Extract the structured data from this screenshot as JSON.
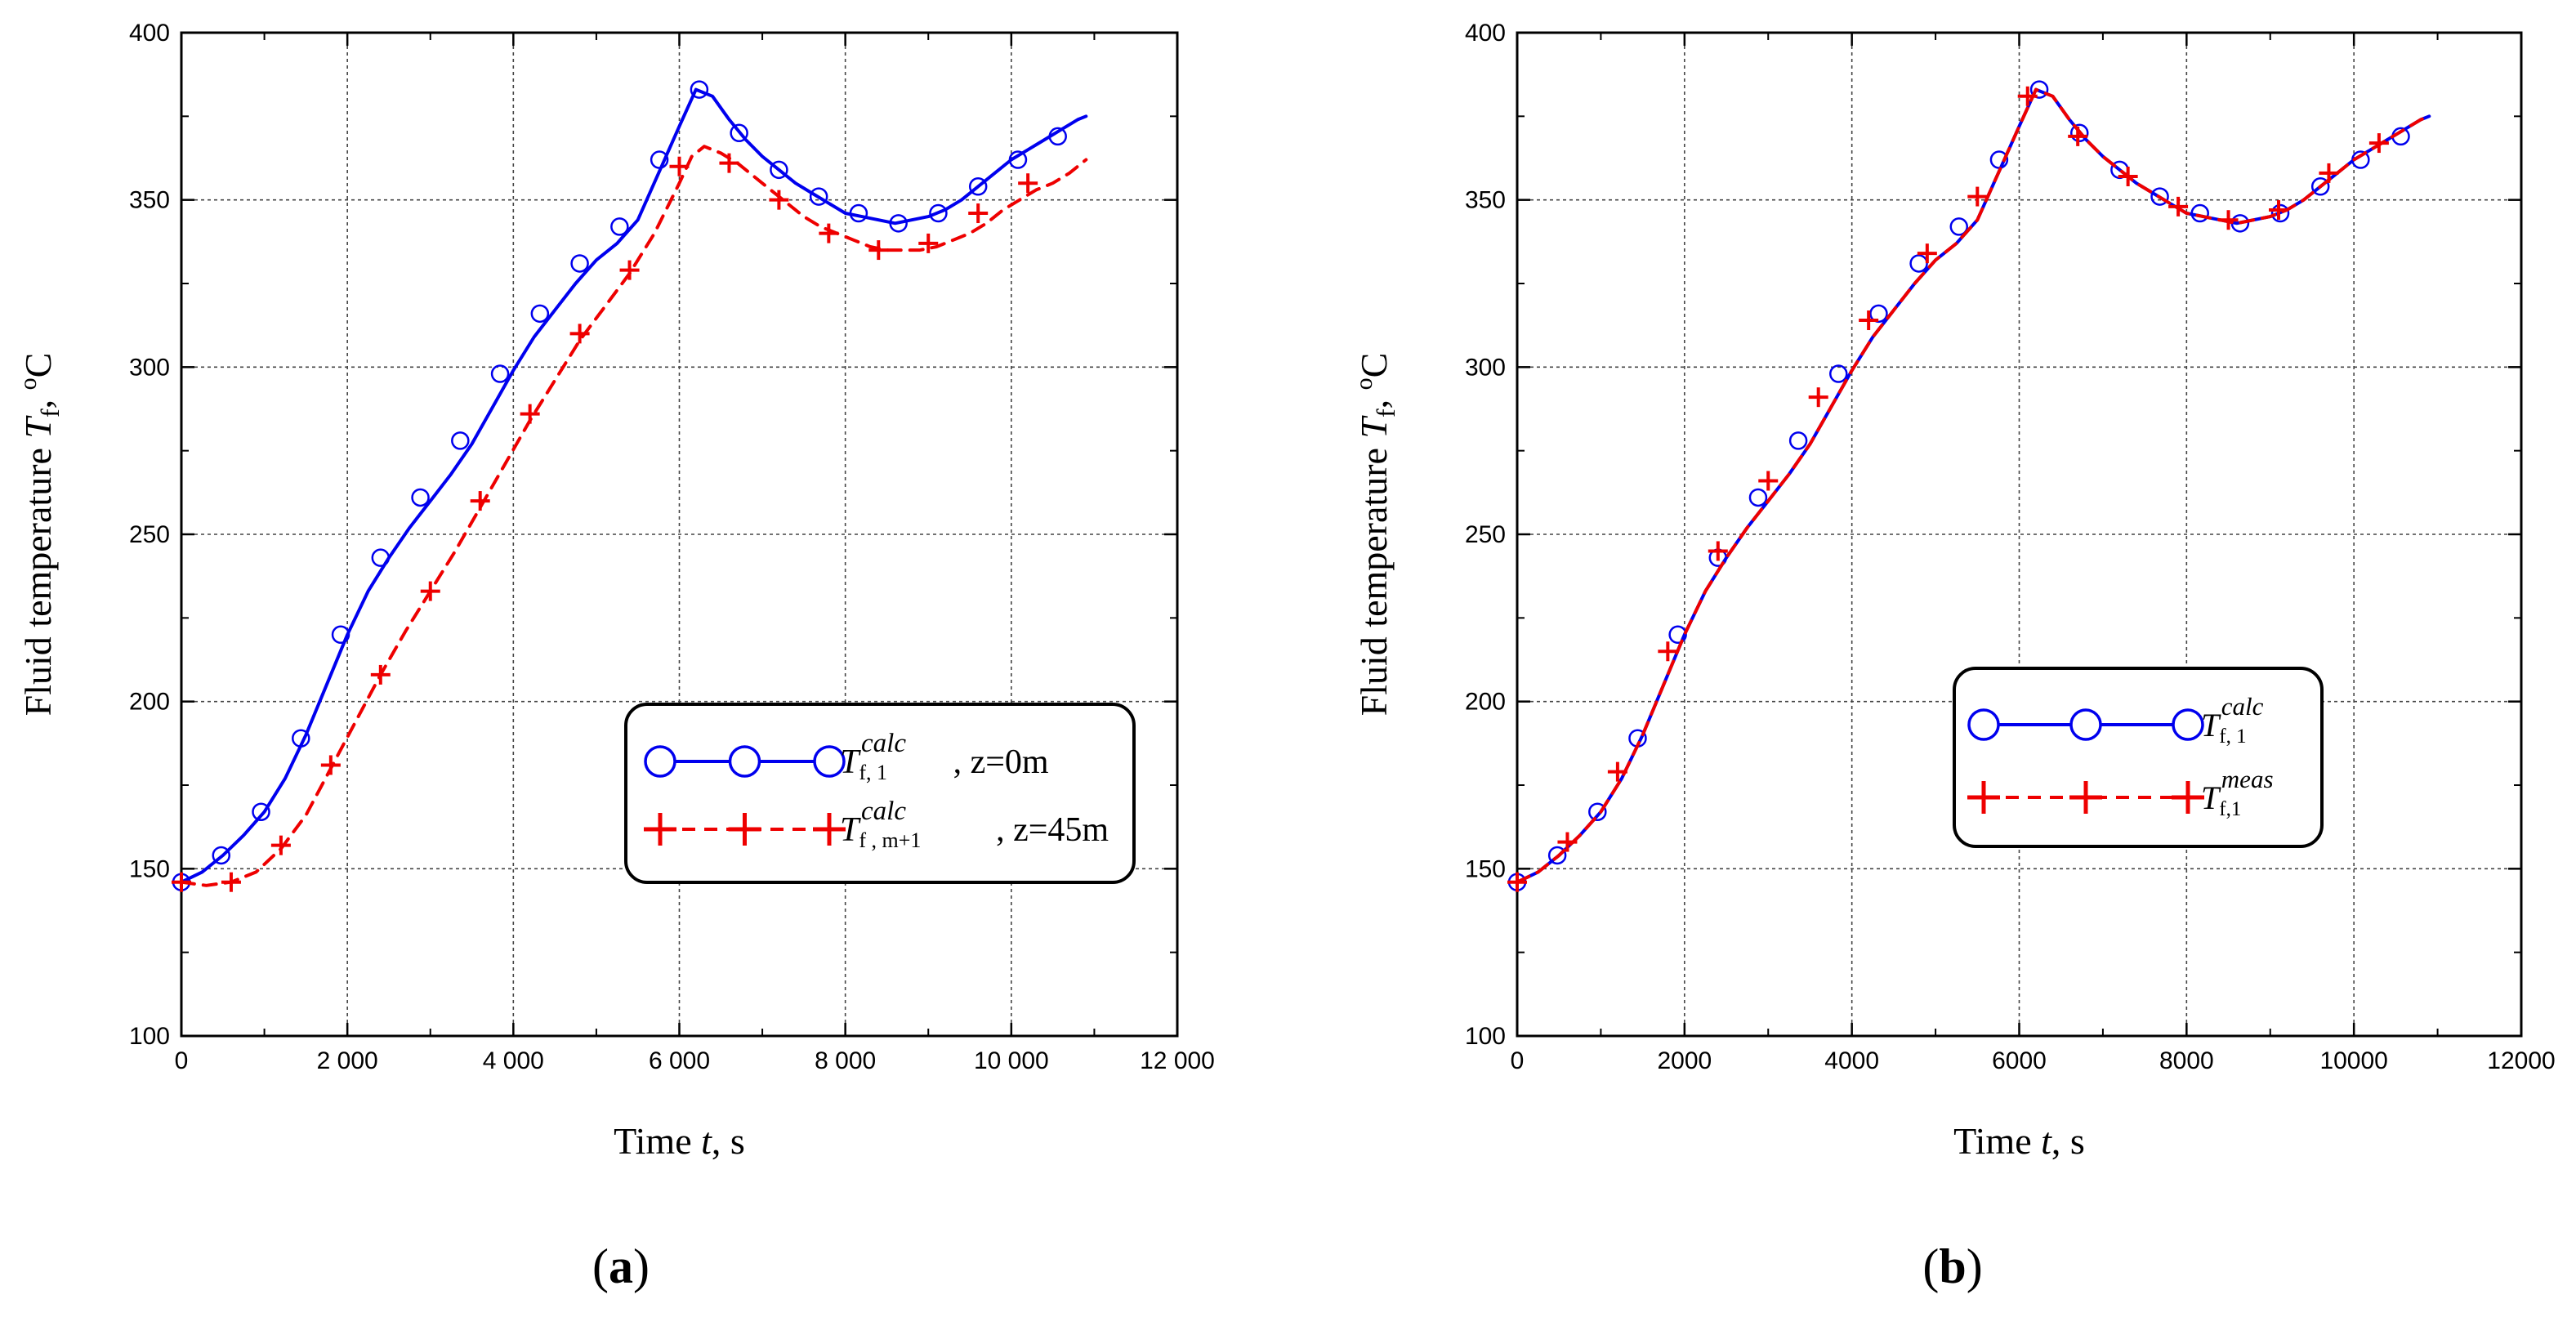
{
  "chart_data": [
    {
      "type": "line",
      "panel_label": [
        "(",
        "a",
        ")"
      ],
      "xlabel": {
        "pre": "Time ",
        "var": "t",
        "post": ", s"
      },
      "ylabel": {
        "pre": "Fluid temperature ",
        "var": "T",
        "sub": "f",
        "post": ",  ",
        "sup": "o",
        "unit": "C"
      },
      "xlim": [
        0,
        12000
      ],
      "ylim": [
        100,
        400
      ],
      "xticks": [
        0,
        2000,
        4000,
        6000,
        8000,
        10000,
        12000
      ],
      "xtick_labels": [
        "0",
        "2 000",
        "4 000",
        "6 000",
        "8 000",
        "10 000",
        "12 000"
      ],
      "yticks": [
        100,
        150,
        200,
        250,
        300,
        350,
        400
      ],
      "ytick_labels": [
        "100",
        "150",
        "200",
        "250",
        "300",
        "350",
        "400"
      ],
      "grid": true,
      "legend_position": "lower-right",
      "series": [
        {
          "name": "T_f,1^calc, z=0m",
          "color": "#0000ee",
          "line": "solid",
          "marker": "circle",
          "legend_parts": {
            "var": "T",
            "sub": "f, 1",
            "sup": "calc",
            "suffix": ", z=0m"
          },
          "x": [
            0,
            250,
            500,
            750,
            1000,
            1250,
            1500,
            1750,
            2000,
            2250,
            2500,
            2750,
            3000,
            3250,
            3500,
            3750,
            4000,
            4250,
            4500,
            4750,
            5000,
            5250,
            5500,
            5750,
            6000,
            6200,
            6400,
            6600,
            6800,
            7000,
            7200,
            7400,
            7600,
            7800,
            8000,
            8200,
            8400,
            8600,
            8800,
            9000,
            9200,
            9400,
            9600,
            9800,
            10000,
            10200,
            10400,
            10600,
            10800,
            10900
          ],
          "y": [
            146,
            149,
            154,
            160,
            167,
            177,
            190,
            205,
            220,
            233,
            243,
            252,
            260,
            268,
            277,
            288,
            299,
            309,
            317,
            325,
            332,
            337,
            344,
            358,
            372,
            383,
            381,
            374,
            368,
            363,
            359,
            355,
            352,
            349,
            346,
            345,
            344,
            343,
            344,
            345,
            347,
            350,
            354,
            358,
            362,
            365,
            368,
            371,
            374,
            375
          ],
          "markers_x": [
            0,
            480,
            960,
            1440,
            1920,
            2400,
            2880,
            3360,
            3840,
            4320,
            4800,
            5280,
            5760,
            6240,
            6720,
            7200,
            7680,
            8160,
            8640,
            9120,
            9600,
            10080,
            10560
          ],
          "markers_y": [
            146,
            154,
            167,
            189,
            220,
            243,
            261,
            278,
            298,
            316,
            331,
            342,
            362,
            383,
            370,
            359,
            351,
            346,
            343,
            346,
            354,
            362,
            369
          ]
        },
        {
          "name": "T_f,m+1^calc, z=45m",
          "color": "#ee0000",
          "line": "dashed",
          "marker": "plus",
          "legend_parts": {
            "var": "T",
            "sub": "f , m+1",
            "sup": "calc",
            "suffix": " ,  z=45m"
          },
          "x": [
            0,
            300,
            600,
            900,
            1200,
            1500,
            1800,
            2100,
            2400,
            2700,
            3000,
            3300,
            3600,
            3900,
            4200,
            4500,
            4800,
            5100,
            5400,
            5700,
            6000,
            6150,
            6300,
            6500,
            6700,
            6900,
            7100,
            7300,
            7500,
            7700,
            7900,
            8100,
            8300,
            8500,
            8700,
            8900,
            9100,
            9300,
            9500,
            9700,
            9900,
            10100,
            10300,
            10500,
            10700,
            10900
          ],
          "y": [
            146,
            145,
            146,
            149,
            156,
            166,
            180,
            194,
            208,
            221,
            233,
            245,
            258,
            271,
            284,
            296,
            308,
            318,
            328,
            340,
            355,
            363,
            366,
            364,
            361,
            357,
            353,
            349,
            345,
            342,
            340,
            338,
            336,
            335,
            335,
            335,
            336,
            338,
            340,
            343,
            347,
            350,
            353,
            355,
            358,
            362
          ],
          "markers_x": [
            0,
            600,
            1200,
            1800,
            2400,
            3000,
            3600,
            4200,
            4800,
            5400,
            6000,
            6600,
            7200,
            7800,
            8400,
            9000,
            9600,
            10200
          ],
          "markers_y": [
            146,
            146,
            157,
            181,
            208,
            233,
            260,
            286,
            310,
            329,
            360,
            361,
            350,
            340,
            335,
            337,
            346,
            355
          ]
        }
      ]
    },
    {
      "type": "line",
      "panel_label": [
        "(",
        "b",
        ")"
      ],
      "xlabel": {
        "pre": "Time ",
        "var": "t",
        "post": ", s"
      },
      "ylabel": {
        "pre": "Fluid temperature ",
        "var": "T",
        "sub": "f",
        "post": ",  ",
        "sup": "o",
        "unit": "C"
      },
      "xlim": [
        0,
        12000
      ],
      "ylim": [
        100,
        400
      ],
      "xticks": [
        0,
        2000,
        4000,
        6000,
        8000,
        10000,
        12000
      ],
      "xtick_labels": [
        "0",
        "2000",
        "4000",
        "6000",
        "8000",
        "10000",
        "12000"
      ],
      "yticks": [
        100,
        150,
        200,
        250,
        300,
        350,
        400
      ],
      "ytick_labels": [
        "100",
        "150",
        "200",
        "250",
        "300",
        "350",
        "400"
      ],
      "grid": true,
      "legend_position": "center-right",
      "series": [
        {
          "name": "T_f,1^calc",
          "color": "#0000ee",
          "line": "solid",
          "marker": "circle",
          "legend_parts": {
            "var": "T",
            "sub": "f, 1",
            "sup": "calc",
            "suffix": ""
          },
          "x": [
            0,
            250,
            500,
            750,
            1000,
            1250,
            1500,
            1750,
            2000,
            2250,
            2500,
            2750,
            3000,
            3250,
            3500,
            3750,
            4000,
            4250,
            4500,
            4750,
            5000,
            5250,
            5500,
            5750,
            6000,
            6200,
            6400,
            6600,
            6800,
            7000,
            7200,
            7400,
            7600,
            7800,
            8000,
            8200,
            8400,
            8600,
            8800,
            9000,
            9200,
            9400,
            9600,
            9800,
            10000,
            10200,
            10400,
            10600,
            10800,
            10900
          ],
          "y": [
            146,
            149,
            154,
            160,
            167,
            177,
            190,
            205,
            220,
            233,
            243,
            252,
            260,
            268,
            277,
            288,
            299,
            309,
            317,
            325,
            332,
            337,
            344,
            358,
            372,
            383,
            381,
            374,
            368,
            363,
            359,
            355,
            352,
            349,
            346,
            345,
            344,
            343,
            344,
            345,
            347,
            350,
            354,
            358,
            362,
            365,
            368,
            371,
            374,
            375
          ],
          "markers_x": [
            0,
            480,
            960,
            1440,
            1920,
            2400,
            2880,
            3360,
            3840,
            4320,
            4800,
            5280,
            5760,
            6240,
            6720,
            7200,
            7680,
            8160,
            8640,
            9120,
            9600,
            10080,
            10560
          ],
          "markers_y": [
            146,
            154,
            167,
            189,
            220,
            243,
            261,
            278,
            298,
            316,
            331,
            342,
            362,
            383,
            370,
            359,
            351,
            346,
            343,
            346,
            354,
            362,
            369
          ]
        },
        {
          "name": "T_f,1^meas",
          "color": "#ee0000",
          "line": "dashed",
          "marker": "plus",
          "legend_parts": {
            "var": "T",
            "sub": "f,1",
            "sup": "meas",
            "suffix": ""
          },
          "x": [
            0,
            250,
            500,
            750,
            1000,
            1250,
            1500,
            1750,
            2000,
            2250,
            2500,
            2750,
            3000,
            3250,
            3500,
            3750,
            4000,
            4250,
            4500,
            4750,
            5000,
            5250,
            5500,
            5750,
            6000,
            6200,
            6400,
            6600,
            6800,
            7000,
            7200,
            7400,
            7600,
            7800,
            8000,
            8200,
            8400,
            8600,
            8800,
            9000,
            9200,
            9400,
            9600,
            9800,
            10000,
            10200,
            10400,
            10600,
            10800,
            10900
          ],
          "y": [
            146,
            149,
            154,
            160,
            167,
            177,
            190,
            205,
            220,
            233,
            243,
            252,
            260,
            268,
            277,
            288,
            299,
            309,
            317,
            325,
            332,
            337,
            344,
            358,
            372,
            383,
            381,
            374,
            368,
            363,
            359,
            355,
            352,
            349,
            346,
            345,
            344,
            343,
            344,
            345,
            347,
            350,
            354,
            358,
            362,
            365,
            368,
            371,
            374,
            375
          ],
          "markers_x": [
            0,
            600,
            1200,
            1800,
            2400,
            3000,
            3600,
            4200,
            4900,
            5500,
            6100,
            6700,
            7300,
            7900,
            8500,
            9100,
            9700,
            10300
          ],
          "markers_y": [
            146,
            158,
            179,
            215,
            245,
            266,
            291,
            314,
            334,
            351,
            381,
            369,
            357,
            348,
            344,
            347,
            358,
            367
          ]
        }
      ]
    }
  ]
}
